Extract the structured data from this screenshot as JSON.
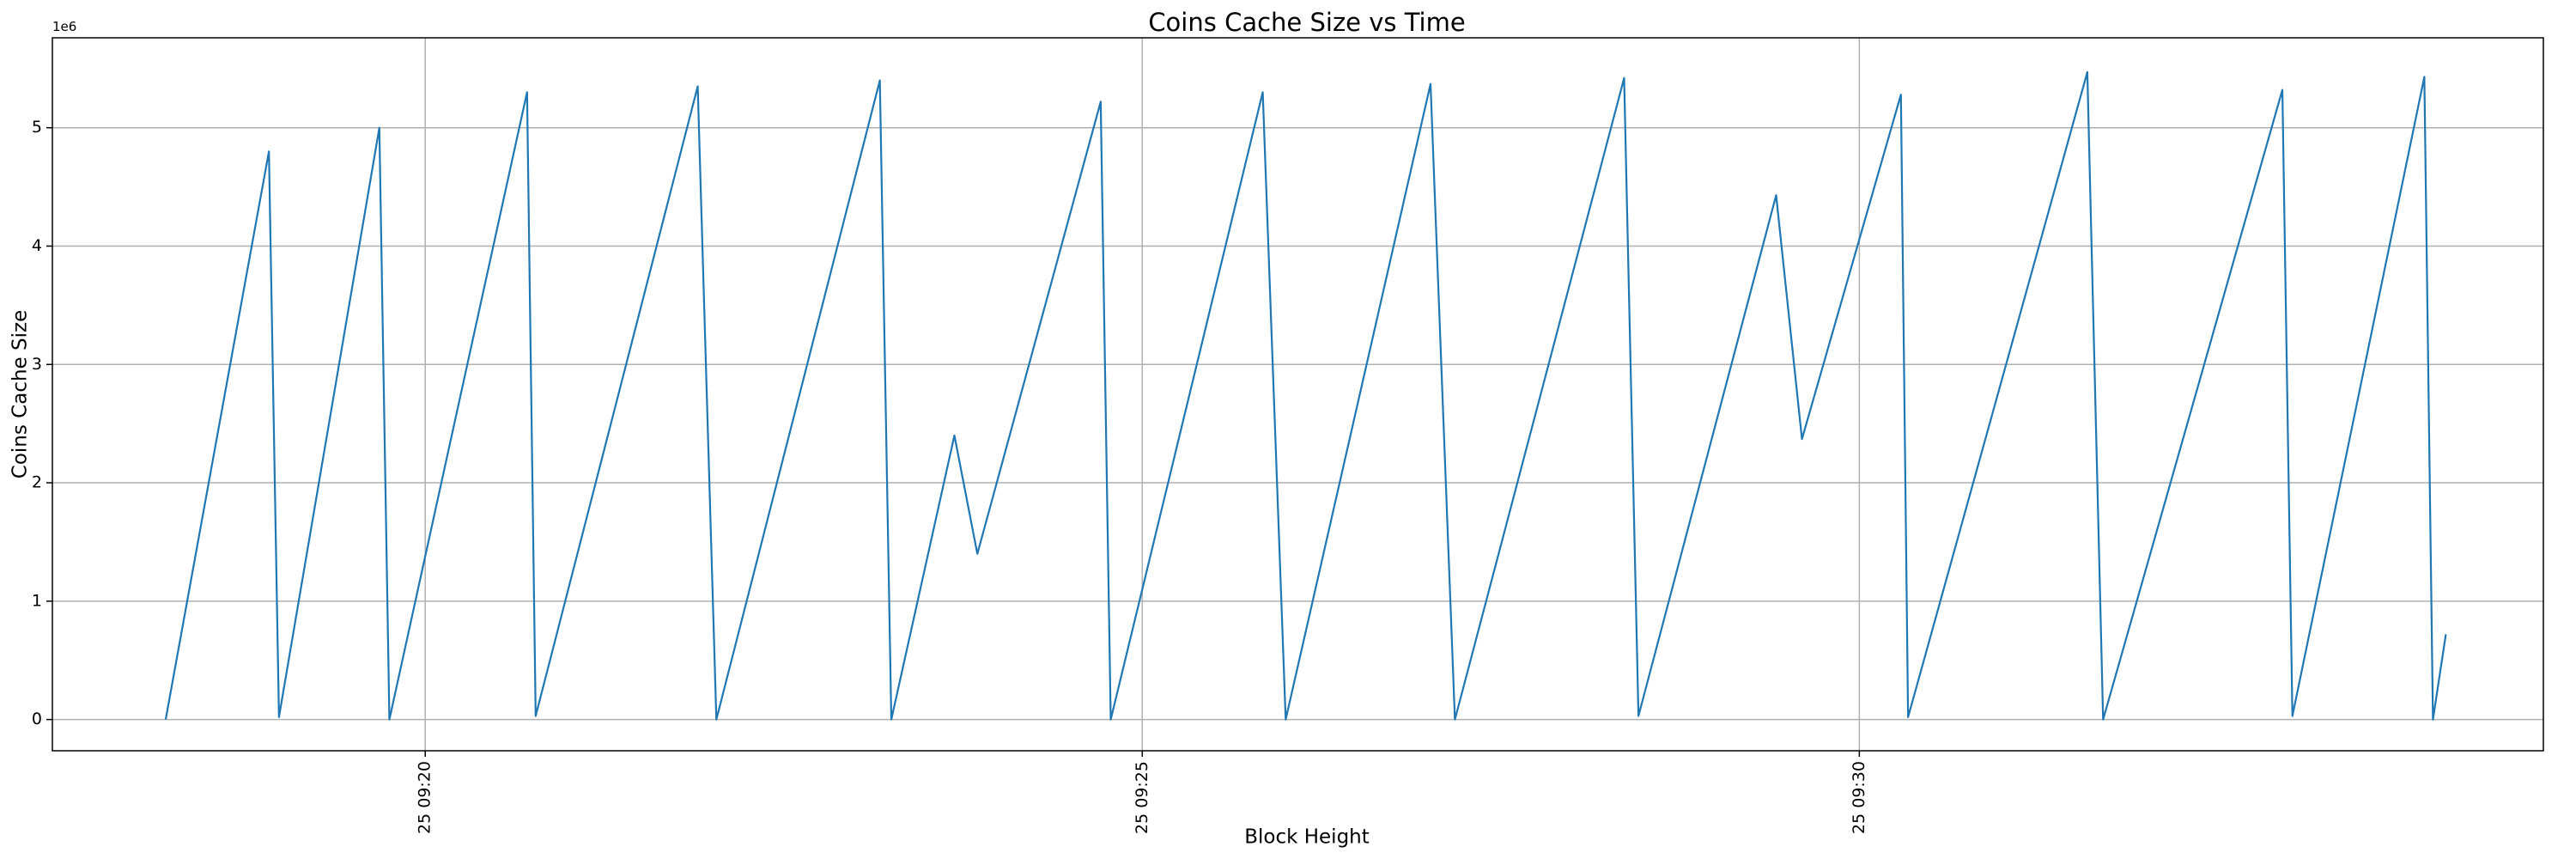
{
  "chart_data": {
    "type": "line",
    "title": "Coins Cache Size vs Time",
    "xlabel": "Block Height",
    "ylabel": "Coins Cache Size",
    "y_offset_label": "1e6",
    "x": [
      18.19,
      18.91,
      18.98,
      19.68,
      19.75,
      20.71,
      20.77,
      21.9,
      22.03,
      23.17,
      23.25,
      23.69,
      23.85,
      24.71,
      24.78,
      25.84,
      26.0,
      27.01,
      27.18,
      28.36,
      28.46,
      29.42,
      29.6,
      30.29,
      30.34,
      31.59,
      31.7,
      32.95,
      33.02,
      33.94,
      34.0,
      34.09
    ],
    "series": [
      {
        "name": "Coins Cache Size",
        "color": "#1f77b4",
        "values": [
          0.0,
          4.8,
          0.02,
          5.0,
          0.0,
          5.3,
          0.03,
          5.35,
          0.0,
          5.4,
          0.0,
          2.4,
          1.4,
          5.22,
          0.0,
          5.3,
          0.0,
          5.37,
          0.0,
          5.42,
          0.03,
          4.43,
          2.37,
          5.28,
          0.02,
          5.47,
          0.0,
          5.32,
          0.03,
          5.43,
          0.0,
          0.72
        ]
      }
    ],
    "xlim": [
      17.4,
      34.77
    ],
    "ylim": [
      -0.264,
      5.76
    ],
    "xticks": [
      {
        "value": 20,
        "label": "25 09:20"
      },
      {
        "value": 25,
        "label": "25 09:25"
      },
      {
        "value": 30,
        "label": "25 09:30"
      }
    ],
    "yticks": [
      0,
      1,
      2,
      3,
      4,
      5
    ],
    "grid": true
  }
}
